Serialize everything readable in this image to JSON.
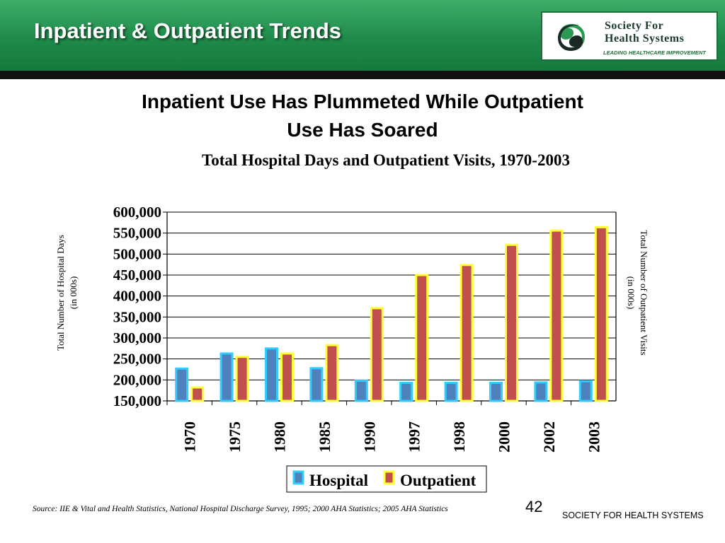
{
  "header": {
    "title": "Inpatient & Outpatient Trends",
    "logo": {
      "name_line1": "Society For",
      "name_line2": "Health Systems",
      "tagline": "LEADING HEALTHCARE IMPROVEMENT",
      "icon": "society-swirl-logo"
    }
  },
  "subtitle": {
    "line1": "Inpatient Use Has Plummeted While Outpatient",
    "line2": "Use Has Soared"
  },
  "chart_data": {
    "type": "bar",
    "title": "Total Hospital Days and Outpatient Visits, 1970-2003",
    "ylabel": "Total Number of Hospital Days",
    "ylabel_unit": "(in 000s)",
    "y2label": "Total Number of Outpatient Visits",
    "y2label_unit": "(in 000s)",
    "ylim": [
      150000,
      600000
    ],
    "ytick_step": 50000,
    "ytick_labels": [
      "150,000",
      "200,000",
      "250,000",
      "300,000",
      "350,000",
      "400,000",
      "450,000",
      "500,000",
      "550,000",
      "600,000"
    ],
    "grid": true,
    "legend_position": "bottom-center",
    "categories": [
      "1970",
      "1975",
      "1980",
      "1985",
      "1990",
      "1997",
      "1998",
      "2000",
      "2002",
      "2003"
    ],
    "series": [
      {
        "name": "Hospital",
        "values": [
          227000,
          263000,
          275000,
          228000,
          198000,
          193000,
          193000,
          193000,
          194000,
          197000
        ],
        "fill": "#4f81bd",
        "border": "#33ccff"
      },
      {
        "name": "Outpatient",
        "values": [
          182000,
          255000,
          263000,
          283000,
          371000,
          450000,
          474000,
          522000,
          556000,
          564000
        ],
        "fill": "#c0504d",
        "border": "#ffff33"
      }
    ]
  },
  "footer": {
    "source": "Source:  IIE & Vital and Health Statistics, National Hospital Discharge Survey, 1995;  2000 AHA Statistics; 2005 AHA Statistics",
    "page_number": "42",
    "org": "SOCIETY FOR HEALTH SYSTEMS"
  }
}
